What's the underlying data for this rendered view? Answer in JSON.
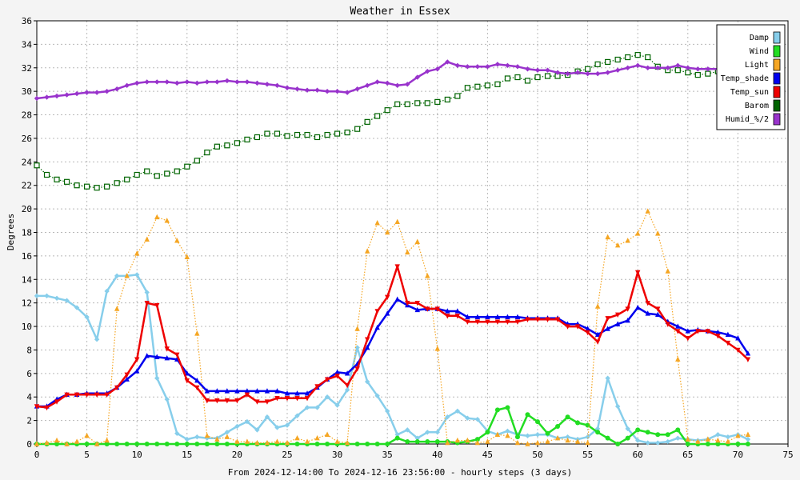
{
  "chart_data": {
    "type": "line",
    "title": "Weather in Essex",
    "ylabel": "Degrees",
    "xlabel": "From 2024-12-14:00 To 2024-12-16 23:56:00 - hourly steps (3 days)",
    "xlim": [
      0,
      75
    ],
    "ylim": [
      0,
      36
    ],
    "xticks": [
      0,
      5,
      10,
      15,
      20,
      25,
      30,
      35,
      40,
      45,
      50,
      55,
      60,
      65,
      70,
      75
    ],
    "yticks": [
      0,
      2,
      4,
      6,
      8,
      10,
      12,
      14,
      16,
      18,
      20,
      22,
      24,
      26,
      28,
      30,
      32,
      34,
      36
    ],
    "grid": true,
    "legend_position": "top-right",
    "series": [
      {
        "name": "Damp",
        "color": "#87ceeb",
        "marker": "diamond",
        "style": "solid",
        "values": [
          12.6,
          12.6,
          12.4,
          12.2,
          11.6,
          10.8,
          8.9,
          13,
          14.3,
          14.3,
          14.4,
          12.9,
          5.6,
          3.8,
          0.9,
          0.4,
          0.6,
          0.5,
          0.5,
          1,
          1.5,
          1.9,
          1.2,
          2.3,
          1.4,
          1.6,
          2.4,
          3.1,
          3.1,
          4,
          3.3,
          4.6,
          8.2,
          5.3,
          4.1,
          2.8,
          0.8,
          1.2,
          0.5,
          1,
          1,
          2.3,
          2.8,
          2.2,
          2.1,
          1.1,
          0.8,
          1.1,
          0.8,
          0.7,
          0.8,
          0.8,
          0.5,
          0.6,
          0.4,
          0.6,
          1.3,
          5.6,
          3.2,
          1.3,
          0.3,
          0.1,
          0.1,
          0.2,
          0.5,
          0.4,
          0.3,
          0.4,
          0.8,
          0.6,
          0.8,
          0.4
        ]
      },
      {
        "name": "Wind",
        "color": "#22dd22",
        "marker": "circle",
        "style": "solid",
        "values": [
          0,
          0,
          0,
          0,
          0,
          0,
          0,
          0,
          0,
          0,
          0,
          0,
          0,
          0,
          0,
          0,
          0,
          0,
          0,
          0,
          0,
          0,
          0,
          0,
          0,
          0,
          0,
          0,
          0,
          0,
          0,
          0,
          0,
          0,
          0,
          0,
          0.5,
          0.2,
          0.2,
          0.2,
          0.2,
          0.2,
          0.1,
          0.2,
          0.4,
          1,
          2.9,
          3.1,
          0.6,
          2.5,
          1.9,
          0.9,
          1.5,
          2.3,
          1.8,
          1.6,
          1,
          0.5,
          0,
          0.5,
          1.2,
          1,
          0.8,
          0.8,
          1.2,
          0,
          0,
          0,
          0,
          0,
          0,
          0
        ]
      },
      {
        "name": "Light",
        "color": "#f5a623",
        "marker": "triangle",
        "style": "dotted",
        "values": [
          0,
          0.1,
          0.3,
          0,
          0.2,
          0.7,
          0,
          0.3,
          11.5,
          14.3,
          16.2,
          17.4,
          19.3,
          19,
          17.3,
          15.9,
          9.4,
          0.7,
          0.4,
          0.6,
          0.2,
          0.2,
          0.1,
          0.1,
          0.2,
          0.1,
          0.5,
          0.2,
          0.5,
          0.8,
          0.2,
          0.1,
          9.8,
          16.4,
          18.8,
          18,
          18.9,
          16.3,
          17.2,
          14.3,
          8.1,
          0.1,
          0.3,
          0.3,
          0.1,
          0.2,
          0.8,
          0.7,
          0.1,
          0,
          0.1,
          0.2,
          0.5,
          0.3,
          0.2,
          0.1,
          11.7,
          17.6,
          16.9,
          17.3,
          17.9,
          19.8,
          17.9,
          14.7,
          7.2,
          0.4,
          0.2,
          0.4,
          0.3,
          0.2,
          0.7,
          0.8
        ]
      },
      {
        "name": "Temp_shade",
        "color": "#0000ee",
        "marker": "triangle",
        "style": "solid",
        "values": [
          3.2,
          3.2,
          3.8,
          4.2,
          4.2,
          4.3,
          4.3,
          4.3,
          4.8,
          5.5,
          6.2,
          7.5,
          7.4,
          7.3,
          7.2,
          6,
          5.4,
          4.5,
          4.5,
          4.5,
          4.5,
          4.5,
          4.5,
          4.5,
          4.5,
          4.3,
          4.3,
          4.3,
          4.8,
          5.5,
          6.1,
          6,
          6.8,
          8.2,
          9.9,
          11.1,
          12.3,
          11.8,
          11.4,
          11.5,
          11.5,
          11.3,
          11.3,
          10.8,
          10.8,
          10.8,
          10.8,
          10.8,
          10.8,
          10.7,
          10.7,
          10.7,
          10.7,
          10.2,
          10.2,
          9.8,
          9.3,
          9.8,
          10.2,
          10.5,
          11.6,
          11.1,
          11,
          10.4,
          10,
          9.6,
          9.7,
          9.6,
          9.5,
          9.3,
          9,
          7.7
        ]
      },
      {
        "name": "Temp_sun",
        "color": "#ee0000",
        "marker": "triangle-down",
        "style": "solid",
        "values": [
          3.2,
          3.1,
          3.6,
          4.2,
          4.2,
          4.2,
          4.2,
          4.2,
          4.8,
          5.9,
          7.2,
          12,
          11.8,
          8.1,
          7.6,
          5.4,
          4.8,
          3.7,
          3.7,
          3.7,
          3.7,
          4.2,
          3.6,
          3.6,
          3.9,
          3.9,
          3.9,
          3.9,
          4.9,
          5.5,
          5.8,
          5,
          6.4,
          8.9,
          11.3,
          12.5,
          15.1,
          12,
          12,
          11.5,
          11.5,
          10.9,
          10.9,
          10.4,
          10.4,
          10.4,
          10.4,
          10.4,
          10.4,
          10.6,
          10.6,
          10.6,
          10.6,
          10,
          10,
          9.5,
          8.7,
          10.7,
          11,
          11.5,
          14.6,
          12,
          11.5,
          10.2,
          9.6,
          9,
          9.6,
          9.6,
          9.2,
          8.6,
          8,
          7.2
        ]
      },
      {
        "name": "Barom",
        "color": "#006400",
        "marker": "square",
        "style": "dotted",
        "values": [
          23.7,
          22.9,
          22.5,
          22.3,
          22,
          21.9,
          21.8,
          21.9,
          22.2,
          22.5,
          22.9,
          23.2,
          22.8,
          23,
          23.2,
          23.6,
          24.1,
          24.8,
          25.3,
          25.4,
          25.6,
          25.9,
          26.1,
          26.4,
          26.4,
          26.2,
          26.3,
          26.3,
          26.1,
          26.3,
          26.4,
          26.5,
          26.8,
          27.4,
          27.9,
          28.4,
          28.9,
          28.9,
          29,
          29,
          29.1,
          29.3,
          29.6,
          30.3,
          30.4,
          30.5,
          30.6,
          31.1,
          31.2,
          30.9,
          31.2,
          31.3,
          31.3,
          31.4,
          31.7,
          31.9,
          32.3,
          32.5,
          32.7,
          32.9,
          33.1,
          32.9,
          32.1,
          31.8,
          31.8,
          31.6,
          31.4,
          31.5,
          31.7,
          31.9,
          32,
          31.6
        ]
      },
      {
        "name": "Humid_%/2",
        "color": "#9933cc",
        "marker": "diamond",
        "style": "solid",
        "values": [
          29.4,
          29.5,
          29.6,
          29.7,
          29.8,
          29.9,
          29.9,
          30,
          30.2,
          30.5,
          30.7,
          30.8,
          30.8,
          30.8,
          30.7,
          30.8,
          30.7,
          30.8,
          30.8,
          30.9,
          30.8,
          30.8,
          30.7,
          30.6,
          30.5,
          30.3,
          30.2,
          30.1,
          30.1,
          30,
          30,
          29.9,
          30.2,
          30.5,
          30.8,
          30.7,
          30.5,
          30.6,
          31.2,
          31.7,
          31.9,
          32.5,
          32.2,
          32.1,
          32.1,
          32.1,
          32.3,
          32.2,
          32.1,
          31.9,
          31.8,
          31.8,
          31.6,
          31.5,
          31.6,
          31.5,
          31.5,
          31.6,
          31.8,
          32,
          32.2,
          32,
          32,
          32,
          32.2,
          32,
          31.9,
          31.9,
          31.9,
          31.9,
          32,
          31.9
        ]
      }
    ]
  }
}
